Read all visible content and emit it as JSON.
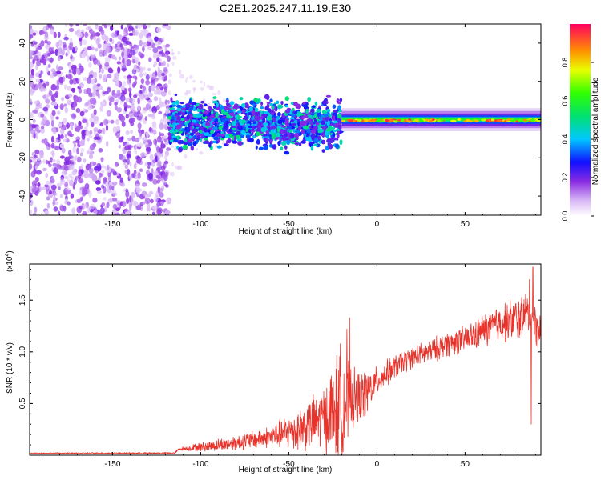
{
  "title": "C2E1.2025.247.11.19.E30",
  "chart_data": [
    {
      "type": "heatmap",
      "name": "spectrogram",
      "xlabel": "Height of straight line (km)",
      "ylabel": "Frequency (Hz)",
      "xlim": [
        -197,
        93
      ],
      "ylim": [
        -50,
        50
      ],
      "xticks": [
        -150,
        -100,
        -50,
        0,
        50
      ],
      "xtick_labels": [
        "-150",
        "-100",
        "-50",
        "0",
        "50"
      ],
      "yticks": [
        -40,
        -20,
        0,
        20,
        40
      ],
      "ytick_labels": [
        "-40",
        "-20",
        "0",
        "20",
        "40"
      ],
      "colorbar": {
        "label": "Normalized spectral amplitude",
        "range": [
          0,
          1
        ],
        "ticks": [
          0.0,
          0.2,
          0.4,
          0.6,
          0.8
        ],
        "tick_labels": [
          "0.0",
          "0.2",
          "0.4",
          "0.6",
          "0.8"
        ]
      },
      "regions": [
        {
          "x_from": -197,
          "x_to": -118,
          "description": "broadband noise",
          "amplitude": 0.12
        },
        {
          "x_from": -118,
          "x_to": -20,
          "description": "scattered signal near 0 Hz",
          "freq_spread": 8,
          "amplitude": 0.3
        },
        {
          "x_from": -20,
          "x_to": 93,
          "description": "narrow carrier at 0 Hz",
          "freq_spread": 2,
          "amplitude": 0.7
        }
      ]
    },
    {
      "type": "line",
      "name": "snr",
      "xlabel": "Height of straight line (km)",
      "ylabel": "SNR (10 * v/v)",
      "scale_label": "(x10",
      "scale_exp": "4",
      "xlim": [
        -197,
        93
      ],
      "ylim": [
        0,
        1.85
      ],
      "xticks": [
        -150,
        -100,
        -50,
        0,
        50
      ],
      "xtick_labels": [
        "-150",
        "-100",
        "-50",
        "0",
        "50"
      ],
      "yticks": [
        0.5,
        1.0,
        1.5
      ],
      "ytick_labels": [
        "0.5",
        "1.0",
        "1.5"
      ],
      "color": "#e8322a",
      "envelope": {
        "x": [
          -197,
          -115,
          -112,
          -100,
          -80,
          -60,
          -45,
          -35,
          -25,
          -20,
          -15,
          -10,
          -5,
          0,
          10,
          20,
          30,
          40,
          50,
          60,
          70,
          80,
          86,
          88,
          90,
          93
        ],
        "y": [
          0.02,
          0.02,
          0.06,
          0.08,
          0.12,
          0.18,
          0.25,
          0.32,
          0.42,
          0.5,
          0.52,
          0.55,
          0.62,
          0.72,
          0.85,
          0.95,
          1.0,
          1.08,
          1.12,
          1.2,
          1.28,
          1.32,
          1.38,
          1.4,
          1.25,
          1.2
        ]
      },
      "noise_amplitude": {
        "x": [
          -197,
          -115,
          -100,
          -60,
          -30,
          -20,
          -15,
          -5,
          0,
          20,
          50,
          80,
          93
        ],
        "y": [
          0.005,
          0.01,
          0.05,
          0.12,
          0.35,
          0.7,
          0.35,
          0.25,
          0.15,
          0.12,
          0.15,
          0.25,
          0.2
        ]
      },
      "spikes": [
        {
          "x": -15.5,
          "y": 1.33
        },
        {
          "x": -17,
          "y": 1.22
        },
        {
          "x": 88.5,
          "y": 1.82
        },
        {
          "x": 86.5,
          "y": 1.7
        },
        {
          "x": 87.5,
          "y": 0.3
        }
      ]
    }
  ]
}
